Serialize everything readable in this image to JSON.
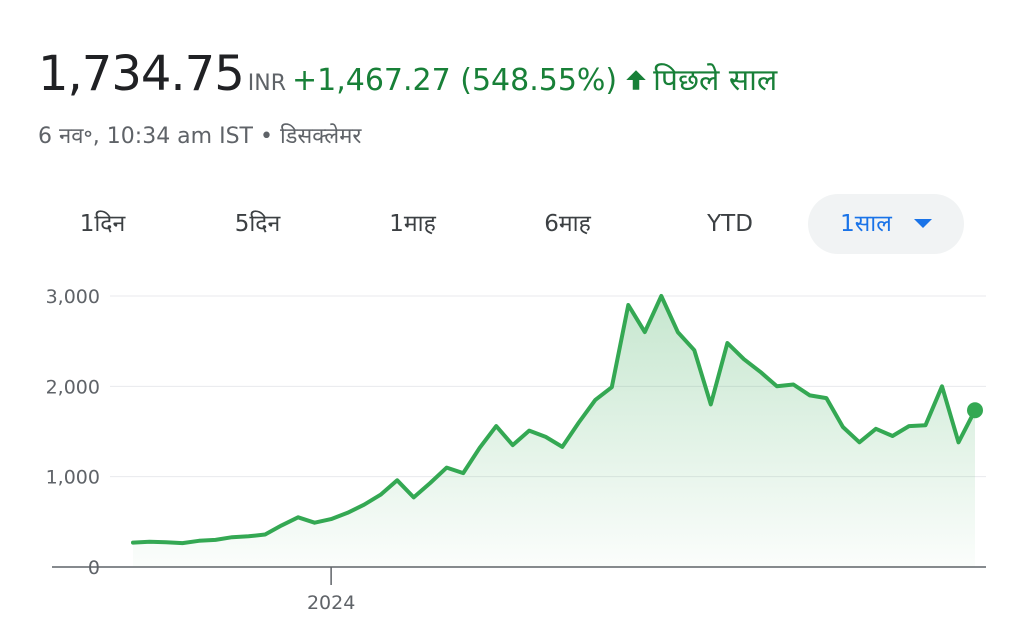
{
  "quote": {
    "price": "1,734.75",
    "currency": "INR",
    "change": "+1,467.27 (548.55%)",
    "period": "पिछले साल",
    "timestamp": "6 नव॰, 10:34 am IST",
    "separator": "•",
    "disclaimer": "डिसक्लेमर"
  },
  "tabs": [
    {
      "label": "1दिन"
    },
    {
      "label": "5दिन"
    },
    {
      "label": "1माह"
    },
    {
      "label": "6माह"
    },
    {
      "label": "YTD"
    },
    {
      "label": "1साल"
    }
  ],
  "active_tab": "1साल",
  "icons": {
    "change_arrow": "arrow-up-icon",
    "dropdown": "caret-down-icon"
  },
  "colors": {
    "positive": "#188038",
    "line": "#34a853",
    "fill": "#34a853",
    "active_tab": "#1a73e8"
  },
  "chart_data": {
    "type": "area",
    "title": "",
    "xlabel": "",
    "ylabel": "",
    "ylim": [
      0,
      3100
    ],
    "yticks": [
      0,
      1000,
      2000,
      3000
    ],
    "ytick_labels": [
      "0",
      "1,000",
      "2,000",
      "3,000"
    ],
    "xticks": [
      {
        "x": 12,
        "label": "2024"
      }
    ],
    "grid": true,
    "legend": "none",
    "series": [
      {
        "x": [
          0,
          1,
          2,
          3,
          4,
          5,
          6,
          7,
          8,
          9,
          10,
          11,
          12,
          13,
          14,
          15,
          16,
          17,
          18,
          19,
          20,
          21,
          22,
          23,
          24,
          25,
          26,
          27,
          28,
          29,
          30,
          31,
          32,
          33,
          34,
          35,
          36,
          37,
          38,
          39,
          40,
          41,
          42,
          43,
          44,
          45,
          46,
          47,
          48,
          49,
          50,
          51
        ],
        "values": [
          270,
          280,
          275,
          265,
          290,
          300,
          330,
          340,
          360,
          460,
          550,
          490,
          530,
          600,
          690,
          800,
          960,
          770,
          930,
          1100,
          1040,
          1320,
          1560,
          1350,
          1510,
          1440,
          1330,
          1600,
          1850,
          1990,
          2900,
          2600,
          3000,
          2600,
          2400,
          1800,
          2480,
          2300,
          2160,
          2000,
          2020,
          1900,
          1870,
          1550,
          1380,
          1530,
          1450,
          1560,
          1570,
          2000,
          1380,
          1735
        ]
      }
    ]
  }
}
